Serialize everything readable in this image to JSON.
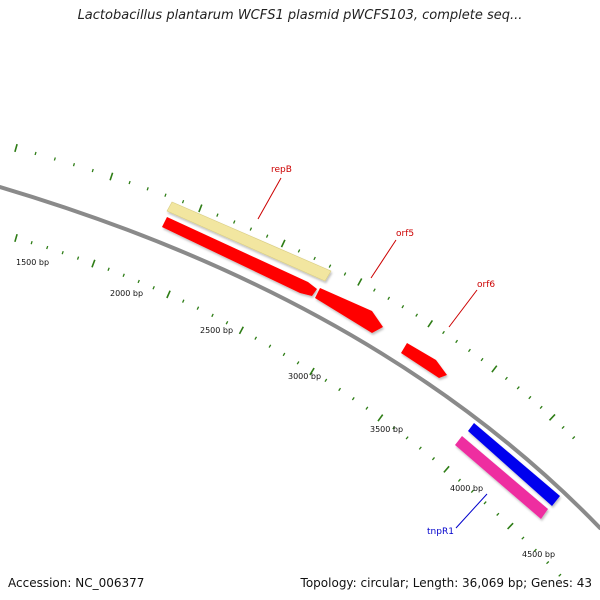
{
  "title": "Lactobacillus plantarum WCFS1 plasmid pWCFS103, complete seq...",
  "footer": {
    "accession": "Accession: NC_006377",
    "summary": "Topology: circular; Length: 36,069 bp; Genes: 43"
  },
  "colors": {
    "backbone": "#8a8a8a",
    "ticks": "#2e7d16",
    "forward_gene": "#ff0000",
    "rep_gene": "#f2e6a0",
    "transposase": "#0000ee",
    "pink_gene": "#ee2ea0",
    "label_red": "#cc0000",
    "label_blue": "#0000cc"
  },
  "scale": {
    "labels": [
      "1500 bp",
      "2000 bp",
      "2500 bp",
      "3000 bp",
      "3500 bp",
      "4000 bp",
      "4500 bp"
    ]
  },
  "features": [
    {
      "name": "repB",
      "color_key": "rep_gene",
      "label_color_key": "label_red"
    },
    {
      "name": "",
      "color_key": "forward_gene"
    },
    {
      "name": "orf5",
      "color_key": "forward_gene",
      "label_color_key": "label_red"
    },
    {
      "name": "orf6",
      "color_key": "forward_gene",
      "label_color_key": "label_red"
    },
    {
      "name": "",
      "color_key": "transposase"
    },
    {
      "name": "tnpR1",
      "color_key": "pink_gene",
      "label_color_key": "label_blue"
    }
  ]
}
